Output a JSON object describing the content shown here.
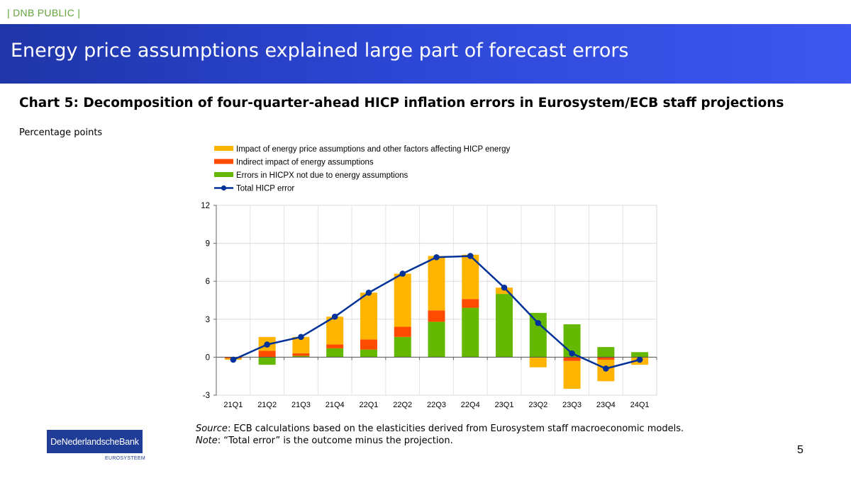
{
  "header": {
    "classification": "| DNB PUBLIC |",
    "title": "Energy price assumptions explained large part of forecast errors"
  },
  "chart_title": "Chart 5: Decomposition of four-quarter-ahead HICP inflation errors in Eurosystem/ECB staff projections",
  "chart_subtitle": "Percentage points",
  "colors": {
    "energy_direct": "#ffb400",
    "energy_indirect": "#ff4b00",
    "hicpx": "#65b800",
    "total": "#003299",
    "logo": "#1f3d97"
  },
  "chart_data": {
    "type": "bar",
    "stacked": true,
    "categories": [
      "21Q1",
      "21Q2",
      "21Q3",
      "21Q4",
      "22Q1",
      "22Q2",
      "22Q3",
      "22Q4",
      "23Q1",
      "23Q2",
      "23Q3",
      "23Q4",
      "24Q1"
    ],
    "series": [
      {
        "name": "Impact of energy price assumptions and other factors affecting HICP energy",
        "type": "bar",
        "values": [
          -0.1,
          1.1,
          1.3,
          2.2,
          3.7,
          4.2,
          4.3,
          3.5,
          0.5,
          -0.8,
          -2.2,
          -1.7,
          -0.6
        ]
      },
      {
        "name": "Indirect impact of energy assumptions",
        "type": "bar",
        "values": [
          -0.1,
          0.5,
          0.2,
          0.3,
          0.8,
          0.8,
          0.9,
          0.7,
          0.0,
          0.0,
          -0.3,
          -0.2,
          0.0
        ]
      },
      {
        "name": "Errors in HICPX not due to energy assumptions",
        "type": "bar",
        "values": [
          0.0,
          -0.6,
          0.1,
          0.7,
          0.6,
          1.6,
          2.8,
          3.9,
          5.0,
          3.5,
          2.6,
          0.8,
          0.4
        ]
      },
      {
        "name": "Total HICP error",
        "type": "line",
        "values": [
          -0.2,
          1.0,
          1.6,
          3.2,
          5.1,
          6.6,
          7.9,
          8.0,
          5.5,
          2.7,
          0.3,
          -0.9,
          -0.2
        ]
      }
    ],
    "ylim": [
      -3,
      12
    ],
    "yticks": [
      -3,
      0,
      3,
      6,
      9,
      12
    ],
    "grid": true,
    "legend_position": "top"
  },
  "footnotes": {
    "source_label": "Source",
    "source_text": ": ECB calculations based on the elasticities derived from Eurosystem staff macroeconomic models.",
    "note_label": "Note",
    "note_text": ": “Total error” is the outcome minus the projection."
  },
  "logo": {
    "text": "DeNederlandscheBank",
    "subtext": "EUROSYSTEEM"
  },
  "page_number": "5"
}
